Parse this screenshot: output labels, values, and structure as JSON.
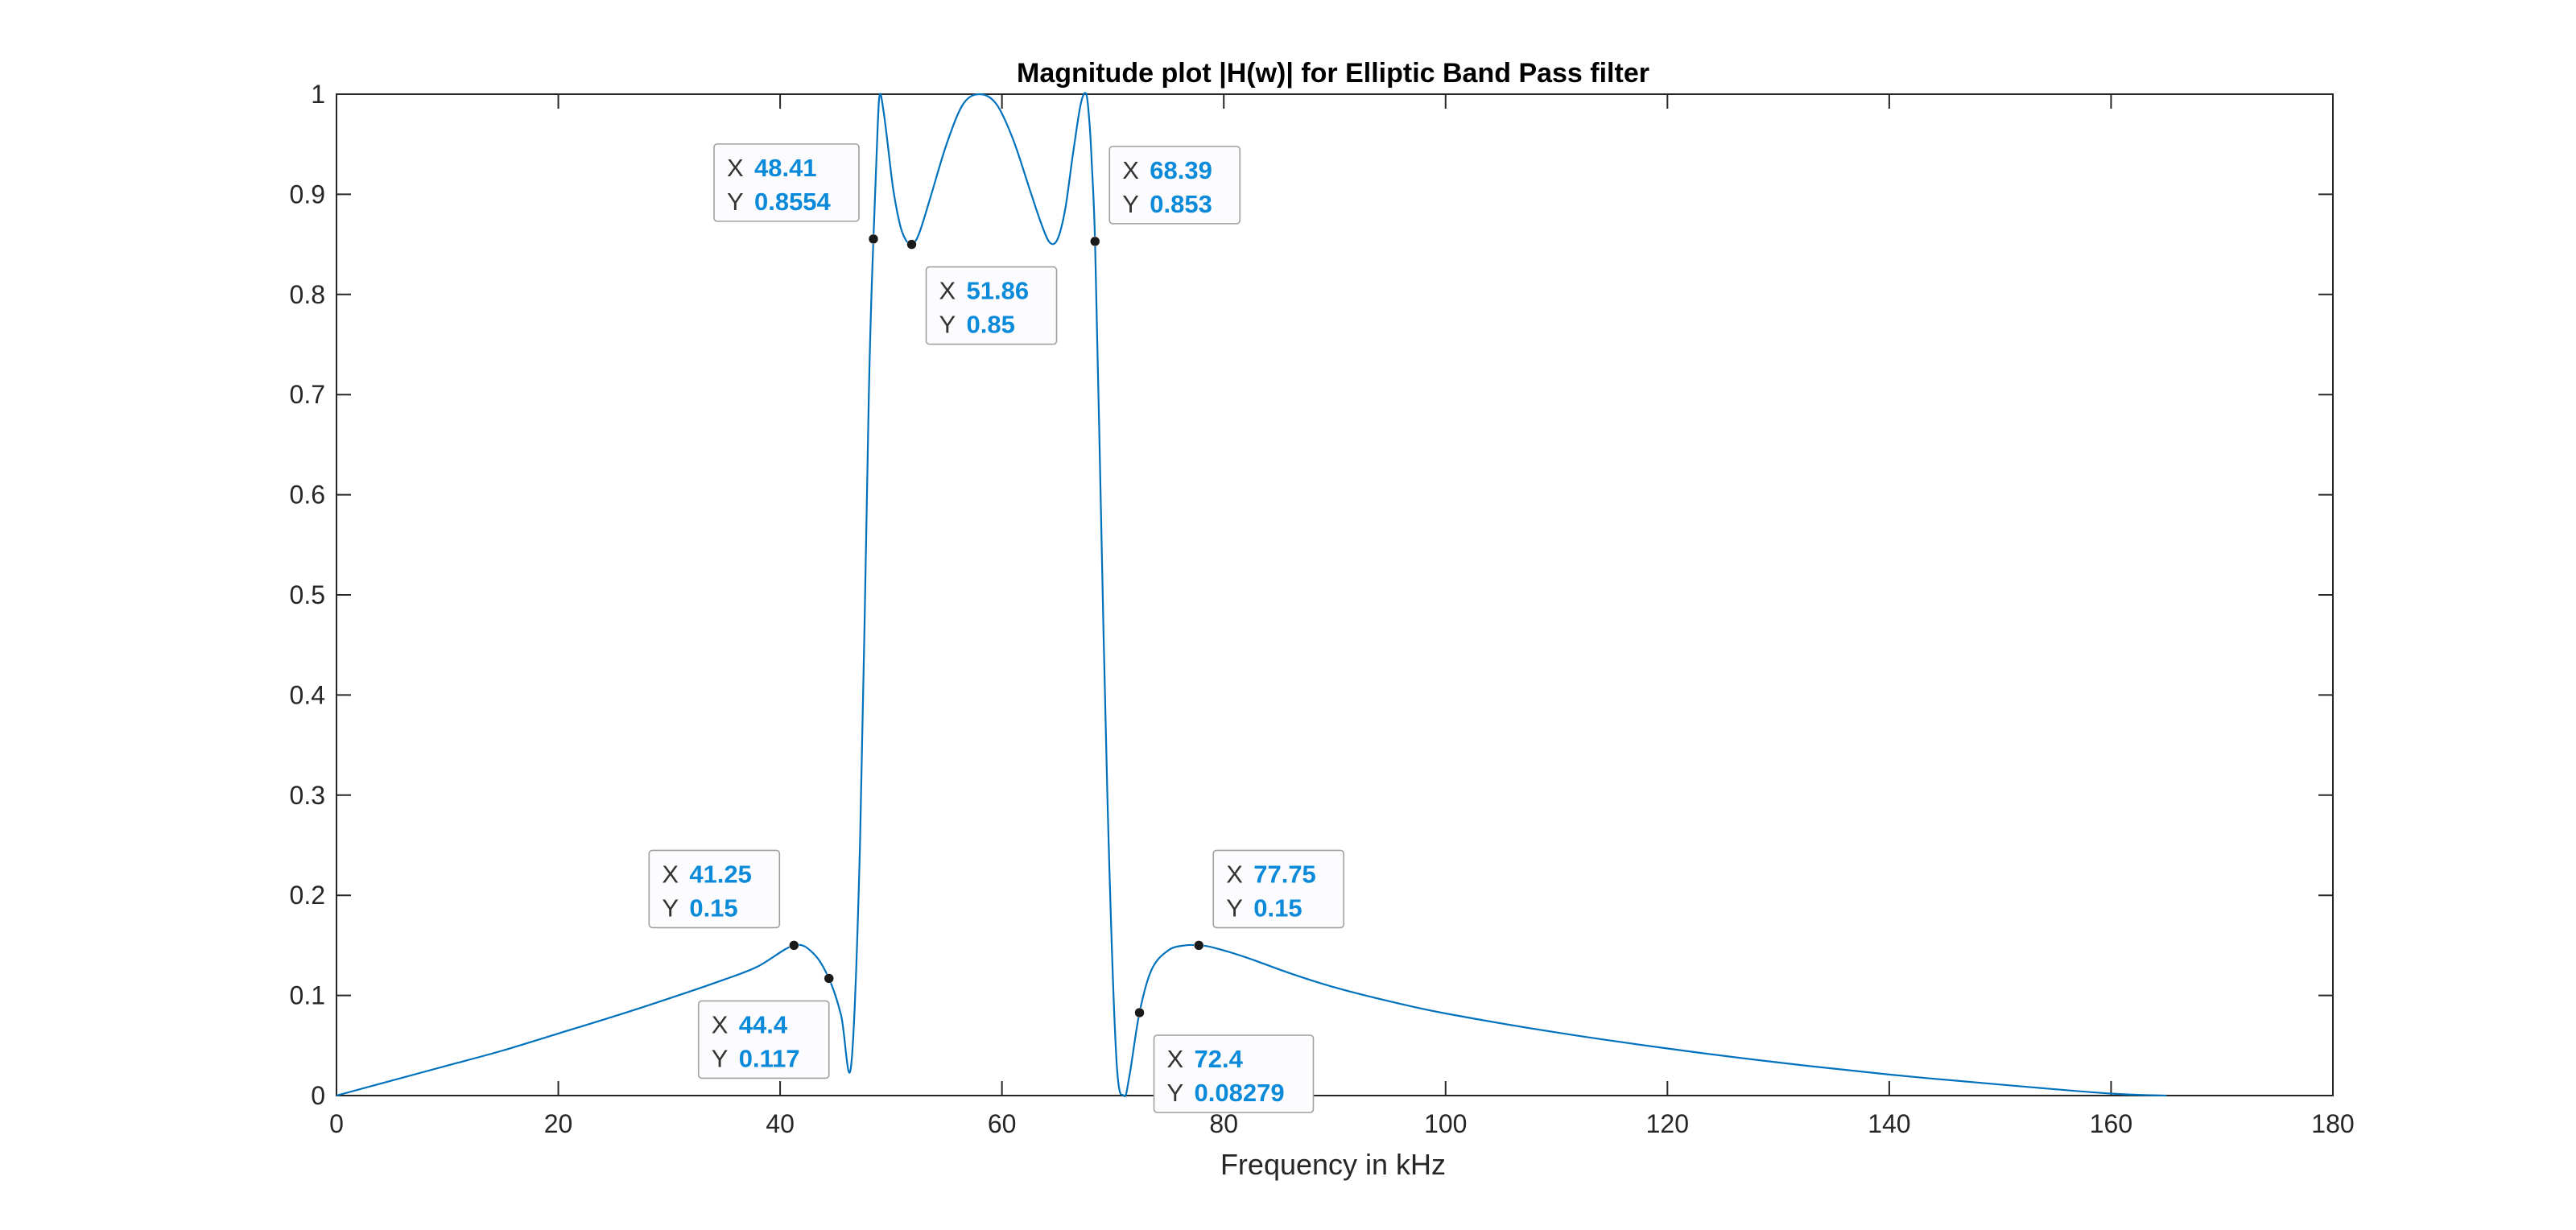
{
  "chart_data": {
    "type": "line",
    "title": "Magnitude plot |H(w)| for Elliptic Band Pass filter",
    "xlabel": "Frequency in kHz",
    "ylabel": "",
    "xlim": [
      0,
      180
    ],
    "ylim": [
      0,
      1
    ],
    "xticks": [
      0,
      20,
      40,
      60,
      80,
      100,
      120,
      140,
      160,
      180
    ],
    "xtick_labels": [
      "0",
      "20",
      "40",
      "60",
      "80",
      "100",
      "120",
      "140",
      "160",
      "180"
    ],
    "yticks": [
      0,
      0.1,
      0.2,
      0.3,
      0.4,
      0.5,
      0.6,
      0.7,
      0.8,
      0.9,
      1
    ],
    "ytick_labels": [
      "0",
      "0.1",
      "0.2",
      "0.3",
      "0.4",
      "0.5",
      "0.6",
      "0.7",
      "0.8",
      "0.9",
      "1"
    ],
    "grid": false,
    "line_color": "#0072bd",
    "series": [
      {
        "x": [
          0,
          5,
          10,
          15,
          20,
          25,
          30,
          35,
          38,
          41.25,
          43,
          44.4,
          45.5,
          46.4,
          47.2,
          48,
          48.41,
          48.8,
          49,
          49.3,
          49.7,
          50.2,
          50.8,
          51.3,
          51.86,
          52.5,
          53.5,
          55,
          56.5,
          58,
          59.5,
          61,
          62.5,
          63.5,
          64.3,
          65,
          65.7,
          66.4,
          67.1,
          67.6,
          67.9,
          68.1,
          68.39,
          68.8,
          69.5,
          70.3,
          71,
          71.5,
          72.4,
          73.5,
          75,
          76.5,
          77.75,
          79,
          82,
          86,
          90,
          95,
          100,
          110,
          120,
          130,
          140,
          150,
          160,
          165
        ],
        "y": [
          0,
          0.015,
          0.03,
          0.045,
          0.062,
          0.079,
          0.097,
          0.116,
          0.129,
          0.15,
          0.142,
          0.117,
          0.08,
          0.03,
          0.25,
          0.7,
          0.8554,
          0.97,
          1.0,
          0.985,
          0.95,
          0.905,
          0.87,
          0.855,
          0.85,
          0.86,
          0.895,
          0.95,
          0.99,
          1.0,
          0.99,
          0.955,
          0.905,
          0.872,
          0.852,
          0.855,
          0.885,
          0.94,
          0.99,
          1.0,
          0.97,
          0.93,
          0.853,
          0.65,
          0.3,
          0.04,
          0.0,
          0.02,
          0.08279,
          0.126,
          0.145,
          0.15,
          0.15,
          0.148,
          0.138,
          0.122,
          0.108,
          0.094,
          0.082,
          0.063,
          0.047,
          0.033,
          0.021,
          0.011,
          0.002,
          0
        ]
      }
    ],
    "datatips": [
      {
        "x": 48.41,
        "y": 0.8554,
        "x_text": "48.41",
        "y_text": "0.8554",
        "placement": "upper-left"
      },
      {
        "x": 51.86,
        "y": 0.85,
        "x_text": "51.86",
        "y_text": "0.85",
        "placement": "lower-right"
      },
      {
        "x": 68.39,
        "y": 0.853,
        "x_text": "68.39",
        "y_text": "0.853",
        "placement": "upper-right"
      },
      {
        "x": 41.25,
        "y": 0.15,
        "x_text": "41.25",
        "y_text": "0.15",
        "placement": "upper-left"
      },
      {
        "x": 44.4,
        "y": 0.117,
        "x_text": "44.4",
        "y_text": "0.117",
        "placement": "lower-left"
      },
      {
        "x": 77.75,
        "y": 0.15,
        "x_text": "77.75",
        "y_text": "0.15",
        "placement": "upper-right"
      },
      {
        "x": 72.4,
        "y": 0.08279,
        "x_text": "72.4",
        "y_text": "0.08279",
        "placement": "lower-right"
      }
    ],
    "datatip_labels": {
      "x": "X",
      "y": "Y"
    }
  }
}
